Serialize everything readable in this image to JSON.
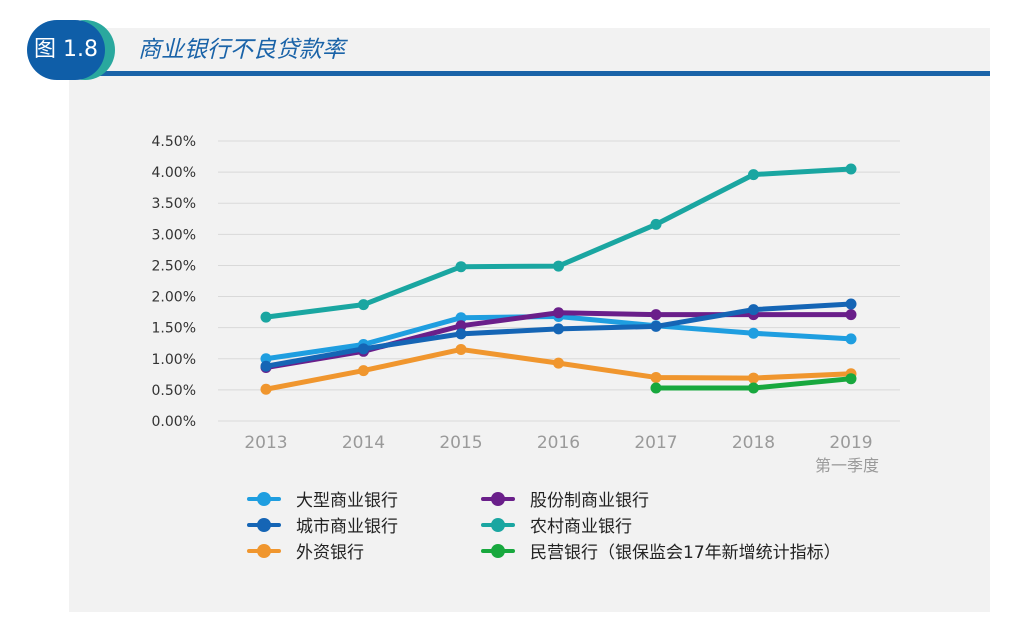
{
  "figure": {
    "badge": "图 1.8",
    "title": "商业银行不良贷款率"
  },
  "chart_data": {
    "type": "line",
    "title": "商业银行不良贷款率",
    "categories": [
      "2013",
      "2014",
      "2015",
      "2016",
      "2017",
      "2018",
      "2019"
    ],
    "category_sublabel": {
      "2019": "第一季度"
    },
    "ylim": [
      0,
      4.5
    ],
    "yticks": [
      "0.00%",
      "0.50%",
      "1.00%",
      "1.50%",
      "2.00%",
      "2.50%",
      "3.00%",
      "3.50%",
      "4.00%",
      "4.50%"
    ],
    "grid": true,
    "legend_position": "bottom",
    "series": [
      {
        "name": "大型商业银行",
        "color": "#1f9ee0",
        "values": [
          1.0,
          1.23,
          1.66,
          1.68,
          1.53,
          1.41,
          1.32
        ]
      },
      {
        "name": "股份制商业银行",
        "color": "#6a1f8a",
        "values": [
          0.86,
          1.12,
          1.53,
          1.74,
          1.71,
          1.71,
          1.71
        ]
      },
      {
        "name": "城市商业银行",
        "color": "#1565b5",
        "values": [
          0.88,
          1.16,
          1.4,
          1.48,
          1.52,
          1.79,
          1.88
        ]
      },
      {
        "name": "农村商业银行",
        "color": "#1aa6a1",
        "values": [
          1.67,
          1.87,
          2.48,
          2.49,
          3.16,
          3.96,
          4.05
        ]
      },
      {
        "name": "外资银行",
        "color": "#f0962e",
        "values": [
          0.51,
          0.81,
          1.15,
          0.93,
          0.7,
          0.69,
          0.76
        ]
      },
      {
        "name": "民营银行（银保监会17年新增统计指标）",
        "color": "#18a83e",
        "values": [
          null,
          null,
          null,
          null,
          0.53,
          0.53,
          0.68
        ]
      }
    ]
  }
}
